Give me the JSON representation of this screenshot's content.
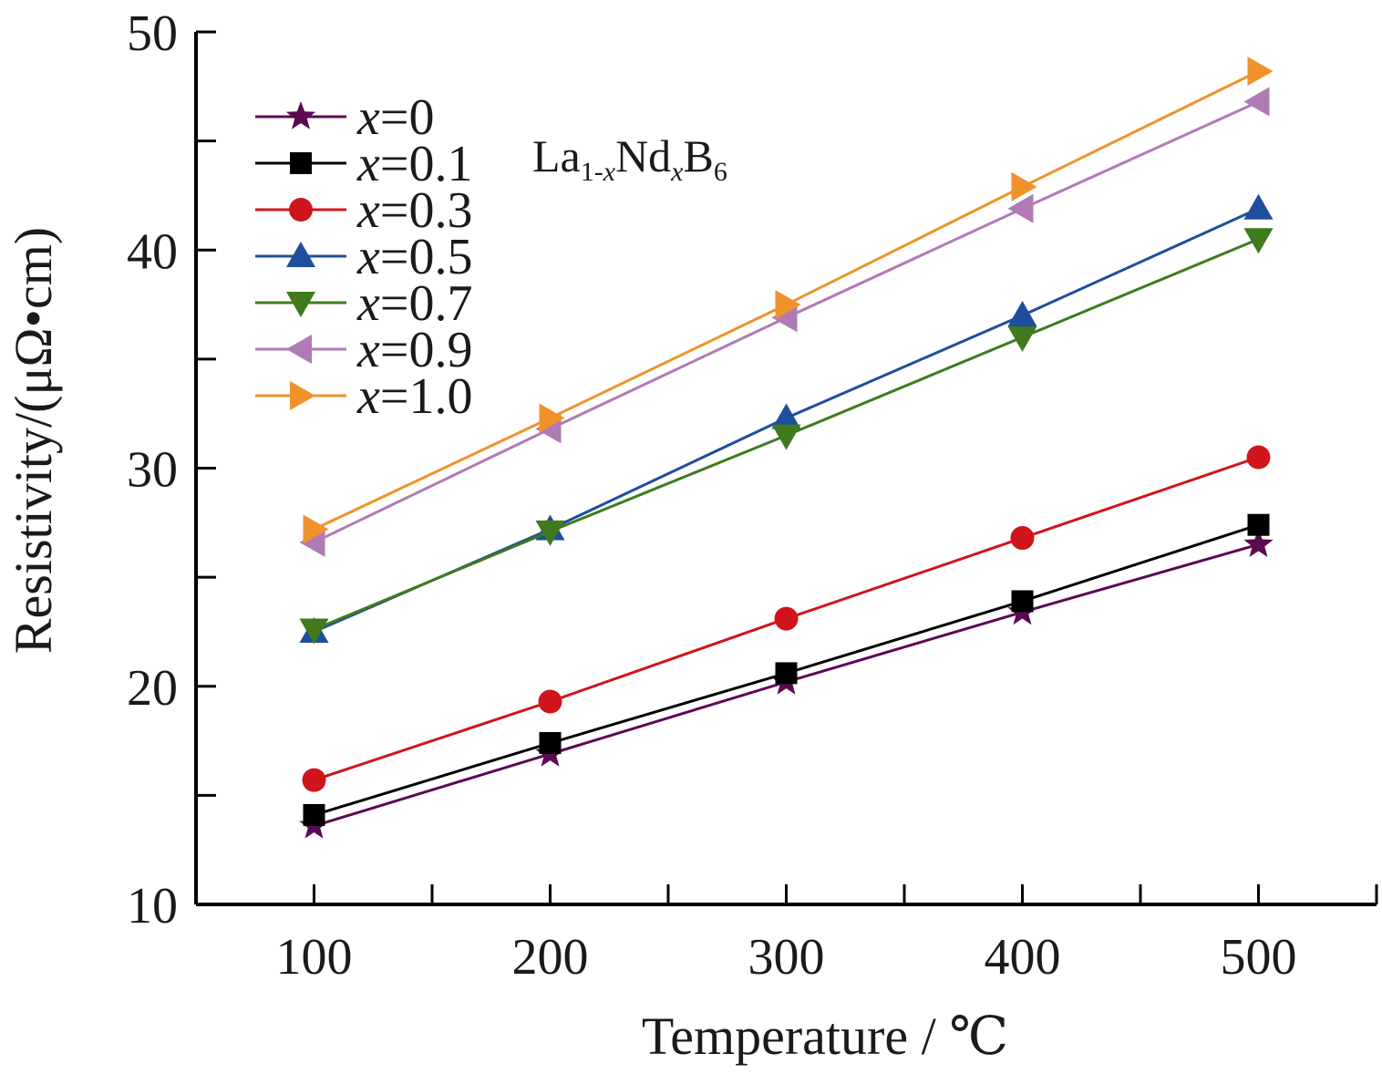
{
  "chart_data": {
    "type": "line",
    "title": "",
    "xlabel": "Temperature / ℃",
    "ylabel": "Resistivity/(μΩ•cm)",
    "annotation": "La1-xNdxB6",
    "annotation_parts": {
      "base1": "La",
      "sub1_num": "1-",
      "sub1_var": "x",
      "base2": "Nd",
      "sub2_var": "x",
      "base3": "B",
      "sub3": "6"
    },
    "x": [
      100,
      200,
      300,
      400,
      500
    ],
    "xlim": [
      50,
      550
    ],
    "ylim": [
      10,
      50
    ],
    "x_ticks": [
      100,
      200,
      300,
      400,
      500
    ],
    "x_minor_ticks": [
      150,
      250,
      350,
      450,
      550
    ],
    "y_ticks": [
      10,
      20,
      30,
      40,
      50
    ],
    "y_minor_ticks": [
      15,
      25,
      35,
      45
    ],
    "grid": false,
    "legend_position": "top-left",
    "series": [
      {
        "name": "x=0",
        "var": "x",
        "value_label": "=0",
        "marker": "star",
        "color": "#5b0a52",
        "values": [
          13.6,
          16.9,
          20.2,
          23.4,
          26.5
        ]
      },
      {
        "name": "x=0.1",
        "var": "x",
        "value_label": "=0.1",
        "marker": "square",
        "color": "#000000",
        "values": [
          14.1,
          17.4,
          20.6,
          23.9,
          27.4
        ]
      },
      {
        "name": "x=0.3",
        "var": "x",
        "value_label": "=0.3",
        "marker": "circle",
        "color": "#d0141b",
        "values": [
          15.7,
          19.3,
          23.1,
          26.8,
          30.5
        ]
      },
      {
        "name": "x=0.5",
        "var": "x",
        "value_label": "=0.5",
        "marker": "triangle-up",
        "color": "#1f4e9c",
        "values": [
          22.5,
          27.2,
          32.3,
          37.0,
          41.9
        ]
      },
      {
        "name": "x=0.7",
        "var": "x",
        "value_label": "=0.7",
        "marker": "triangle-down",
        "color": "#3f7a1e",
        "values": [
          22.6,
          27.1,
          31.5,
          36.0,
          40.5
        ]
      },
      {
        "name": "x=0.9",
        "var": "x",
        "value_label": "=0.9",
        "marker": "triangle-left",
        "color": "#b07ab5",
        "values": [
          26.6,
          31.8,
          36.9,
          41.9,
          46.8
        ]
      },
      {
        "name": "x=1.0",
        "var": "x",
        "value_label": "=1.0",
        "marker": "triangle-right",
        "color": "#f0922b",
        "values": [
          27.2,
          32.3,
          37.5,
          42.9,
          48.2
        ]
      }
    ]
  }
}
